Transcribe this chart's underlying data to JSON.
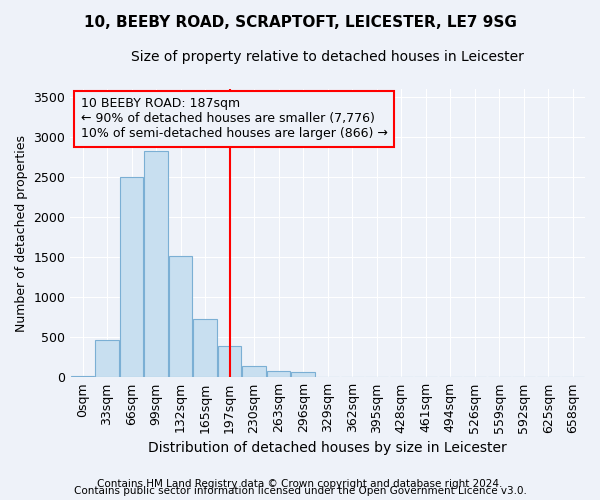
{
  "title": "10, BEEBY ROAD, SCRAPTOFT, LEICESTER, LE7 9SG",
  "subtitle": "Size of property relative to detached houses in Leicester",
  "xlabel": "Distribution of detached houses by size in Leicester",
  "ylabel": "Number of detached properties",
  "footnote1": "Contains HM Land Registry data © Crown copyright and database right 2024.",
  "footnote2": "Contains public sector information licensed under the Open Government Licence v3.0.",
  "bar_labels": [
    "0sqm",
    "33sqm",
    "66sqm",
    "99sqm",
    "132sqm",
    "165sqm",
    "197sqm",
    "230sqm",
    "263sqm",
    "296sqm",
    "329sqm",
    "362sqm",
    "395sqm",
    "428sqm",
    "461sqm",
    "494sqm",
    "526sqm",
    "559sqm",
    "592sqm",
    "625sqm",
    "658sqm"
  ],
  "bar_values": [
    20,
    470,
    2500,
    2820,
    1510,
    730,
    390,
    145,
    75,
    60,
    0,
    0,
    0,
    0,
    0,
    0,
    0,
    0,
    0,
    0,
    0
  ],
  "bar_color": "#c8dff0",
  "bar_edge_color": "#7bafd4",
  "vline_x": 6.0,
  "annotation_title": "10 BEEBY ROAD: 187sqm",
  "annotation_line1": "← 90% of detached houses are smaller (7,776)",
  "annotation_line2": "10% of semi-detached houses are larger (866) →",
  "ylim": [
    0,
    3600
  ],
  "yticks": [
    0,
    500,
    1000,
    1500,
    2000,
    2500,
    3000,
    3500
  ],
  "bg_color": "#eef2f9",
  "grid_color": "#ffffff",
  "title_fontsize": 11,
  "subtitle_fontsize": 10,
  "xlabel_fontsize": 10,
  "ylabel_fontsize": 9,
  "tick_fontsize": 9,
  "annot_fontsize": 9,
  "footnote_fontsize": 7.5
}
